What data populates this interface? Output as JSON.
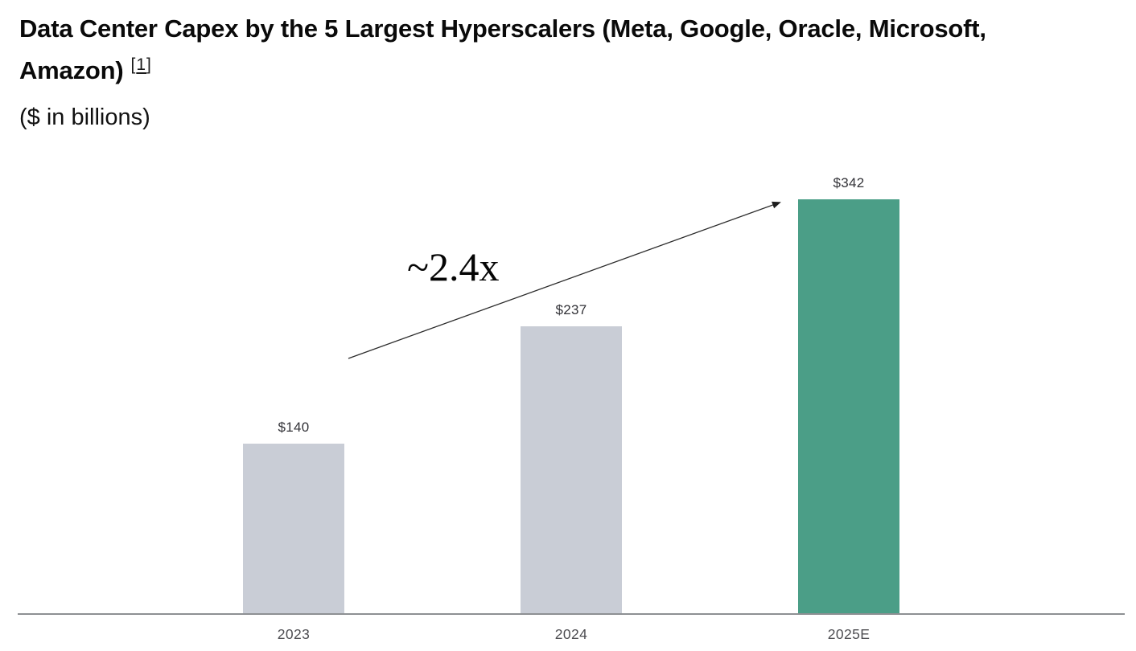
{
  "header": {
    "title_line1": "Data Center Capex by the 5 Largest Hyperscalers (Meta, Google, Oracle, Microsoft,",
    "title_line2": "Amazon)",
    "footnote": {
      "open": "[",
      "number": "1",
      "close": "]"
    },
    "subtitle": "($ in billions)"
  },
  "annotation": {
    "multiplier_label": "~2.4x"
  },
  "chart_data": {
    "type": "bar",
    "title": "Data Center Capex by the 5 Largest Hyperscalers (Meta, Google, Oracle, Microsoft, Amazon)",
    "subtitle": "($ in billions)",
    "categories": [
      "2023",
      "2024",
      "2025E"
    ],
    "values": [
      140,
      237,
      342
    ],
    "value_labels": [
      "$140",
      "$237",
      "$342"
    ],
    "annotation": "~2.4x",
    "ylim": [
      0,
      360
    ],
    "grid": false,
    "legend": false,
    "bar_colors": [
      "#c9cdd6",
      "#c9cdd6",
      "#4b9e87"
    ],
    "axis_line_color": "#8d9093",
    "arrow_color": "#2b2b2b"
  }
}
